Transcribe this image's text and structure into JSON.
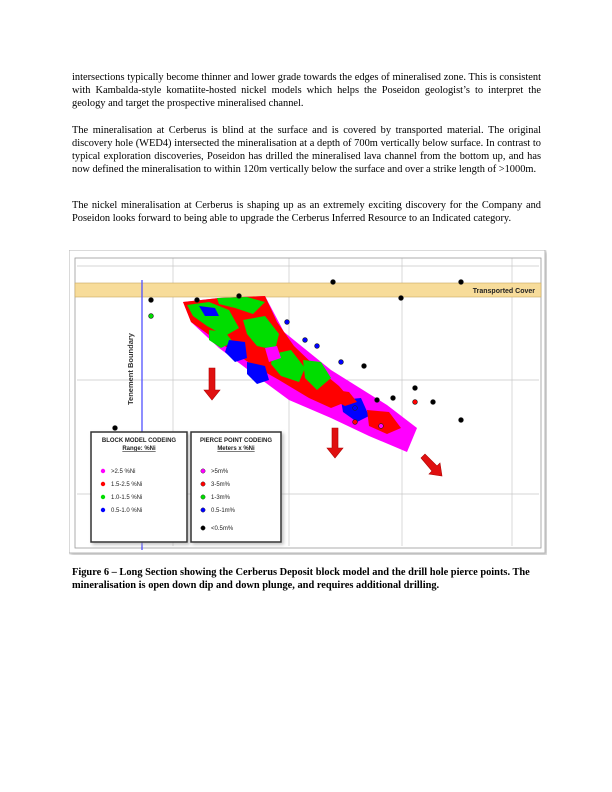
{
  "paragraphs": {
    "p1": "intersections typically become thinner and lower grade towards the edges of mineralised zone.  This is consistent with Kambalda-style komatiite-hosted nickel models which helps the Poseidon geologist’s to interpret the geology and target the prospective mineralised channel.",
    "p2": "The mineralisation at Cerberus is blind at the surface and is covered by transported material.  The original discovery hole (WED4) intersected the mineralisation at a depth of 700m vertically below surface.  In contrast to typical exploration discoveries, Poseidon has drilled the mineralised lava channel from the bottom up, and has now defined the mineralisation to within 120m vertically below the surface and over a strike length of >1000m.",
    "p3": "The nickel mineralisation at Cerberus is shaping up as an extremely exciting discovery for the Company and Poseidon looks forward to being able to upgrade the Cerberus Inferred Resource to an Indicated category."
  },
  "figure": {
    "transported_cover_label": "Transported Cover",
    "tenement_boundary_label": "Tenement Boundary",
    "block_legend": {
      "title": "BLOCK MODEL CODEING",
      "subtitle": "Range: %Ni",
      "items": [
        {
          "label": ">2.5 %Ni",
          "color": "#ff00ff"
        },
        {
          "label": "1.5-2.5 %Ni",
          "color": "#ff0000"
        },
        {
          "label": "1.0-1.5 %Ni",
          "color": "#00dd00"
        },
        {
          "label": "0.5-1.0 %Ni",
          "color": "#0000ff"
        }
      ]
    },
    "pierce_legend": {
      "title": "PIERCE POINT CODEING",
      "subtitle": "Meters x %Ni",
      "items": [
        {
          "label": ">5m%",
          "color": "#ff00ff"
        },
        {
          "label": "3-5m%",
          "color": "#ff0000"
        },
        {
          "label": "1-3m%",
          "color": "#00dd00"
        },
        {
          "label": "0.5-1m%",
          "color": "#0000ff"
        },
        {
          "label": "<0.5m%",
          "color": "#000000"
        }
      ]
    },
    "colors": {
      "magenta": "#ff00ff",
      "red": "#ff0000",
      "green": "#00dd00",
      "blue": "#0000ff",
      "cover": "#f7dc9a",
      "arrow": "#e01010"
    }
  },
  "caption": "Figure 6 – Long Section showing the Cerberus Deposit block model and the drill hole pierce points.  The mineralisation is open down dip and down plunge, and requires additional drilling."
}
